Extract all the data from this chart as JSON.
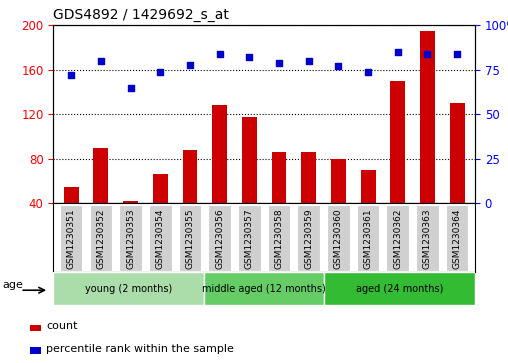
{
  "title": "GDS4892 / 1429692_s_at",
  "samples": [
    "GSM1230351",
    "GSM1230352",
    "GSM1230353",
    "GSM1230354",
    "GSM1230355",
    "GSM1230356",
    "GSM1230357",
    "GSM1230358",
    "GSM1230359",
    "GSM1230360",
    "GSM1230361",
    "GSM1230362",
    "GSM1230363",
    "GSM1230364"
  ],
  "counts": [
    55,
    90,
    42,
    66,
    88,
    128,
    118,
    86,
    86,
    80,
    70,
    150,
    195,
    130
  ],
  "percentile_ranks": [
    72,
    80,
    65,
    74,
    78,
    84,
    82,
    79,
    80,
    77,
    74,
    85,
    84,
    84
  ],
  "ylim_left": [
    40,
    200
  ],
  "ylim_right": [
    0,
    100
  ],
  "yticks_left": [
    40,
    80,
    120,
    160,
    200
  ],
  "yticks_right": [
    0,
    25,
    50,
    75,
    100
  ],
  "yticklabels_right": [
    "0",
    "25",
    "50",
    "75",
    "100%"
  ],
  "bar_color": "#cc0000",
  "dot_color": "#0000cc",
  "bar_bottom": 40,
  "groups": [
    {
      "label": "young (2 months)",
      "start": 0,
      "end": 5
    },
    {
      "label": "middle aged (12 months)",
      "start": 5,
      "end": 9
    },
    {
      "label": "aged (24 months)",
      "start": 9,
      "end": 14
    }
  ],
  "group_colors": [
    "#aaddaa",
    "#66cc66",
    "#33bb33"
  ],
  "xtick_bg": "#d0d0d0",
  "age_label": "age",
  "legend_count_label": "count",
  "legend_pct_label": "percentile rank within the sample",
  "dot_size": 25,
  "bar_width": 0.5
}
